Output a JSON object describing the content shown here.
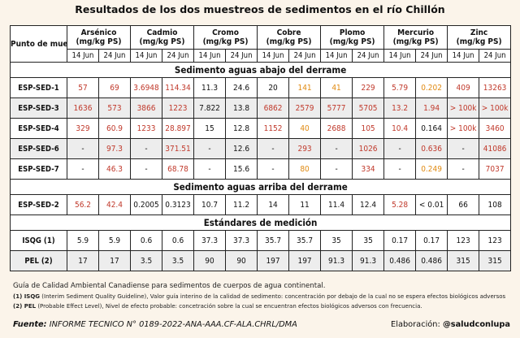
{
  "title": "Resultados de los dos muestreos de sedimentos en el río Chillón",
  "header": {
    "site_label": "Punto de muestreo",
    "metals": [
      {
        "name": "Arsénico",
        "unit": "(mg/kg PS)"
      },
      {
        "name": "Cadmio",
        "unit": "(mg/kg PS)"
      },
      {
        "name": "Cromo",
        "unit": "(mg/kg PS)"
      },
      {
        "name": "Cobre",
        "unit": "(mg/kg PS)"
      },
      {
        "name": "Plomo",
        "unit": "(mg/kg PS)"
      },
      {
        "name": "Mercurio",
        "unit": "(mg/kg PS)"
      },
      {
        "name": "Zinc",
        "unit": "(mg/kg PS)"
      }
    ],
    "dates": [
      "14 Jun",
      "24 Jun"
    ]
  },
  "sections": [
    {
      "title": "Sedimento aguas abajo del derrame",
      "rows": [
        {
          "site": "ESP-SED-1",
          "values": [
            "57",
            "69",
            "3.6948",
            "114.34",
            "11.3",
            "24.6",
            "20",
            "141",
            "41",
            "229",
            "5.79",
            "0.202",
            "409",
            "13263"
          ],
          "colors": [
            "red",
            "red",
            "red",
            "red",
            "blk",
            "blk",
            "blk",
            "org",
            "org",
            "red",
            "red",
            "org",
            "red",
            "red"
          ]
        },
        {
          "site": "ESP-SED-3",
          "values": [
            "1636",
            "573",
            "3866",
            "1223",
            "7.822",
            "13.8",
            "6862",
            "2579",
            "5777",
            "5705",
            "13.2",
            "1.94",
            "> 100k",
            "> 100k"
          ],
          "colors": [
            "red",
            "red",
            "red",
            "red",
            "blk",
            "blk",
            "red",
            "red",
            "red",
            "red",
            "red",
            "red",
            "red",
            "red"
          ]
        },
        {
          "site": "ESP-SED-4",
          "values": [
            "329",
            "60.9",
            "1233",
            "28.897",
            "15",
            "12.8",
            "1152",
            "40",
            "2688",
            "105",
            "10.4",
            "0.164",
            "> 100k",
            "3460"
          ],
          "colors": [
            "red",
            "red",
            "red",
            "red",
            "blk",
            "blk",
            "red",
            "org",
            "red",
            "red",
            "red",
            "blk",
            "red",
            "red"
          ]
        },
        {
          "site": "ESP-SED-6",
          "values": [
            "-",
            "97.3",
            "-",
            "371.51",
            "-",
            "12.6",
            "-",
            "293",
            "-",
            "1026",
            "-",
            "0.636",
            "-",
            "41086"
          ],
          "colors": [
            "blk",
            "red",
            "blk",
            "red",
            "blk",
            "blk",
            "blk",
            "red",
            "blk",
            "red",
            "blk",
            "red",
            "blk",
            "red"
          ]
        },
        {
          "site": "ESP-SED-7",
          "values": [
            "-",
            "46.3",
            "-",
            "68.78",
            "-",
            "15.6",
            "-",
            "80",
            "-",
            "334",
            "-",
            "0.249",
            "-",
            "7037"
          ],
          "colors": [
            "blk",
            "red",
            "blk",
            "red",
            "blk",
            "blk",
            "blk",
            "org",
            "blk",
            "red",
            "blk",
            "org",
            "blk",
            "red"
          ]
        }
      ]
    },
    {
      "title": "Sedimento aguas arriba del derrame",
      "rows": [
        {
          "site": "ESP-SED-2",
          "values": [
            "56.2",
            "42.4",
            "0.2005",
            "0.3123",
            "10.7",
            "11.2",
            "14",
            "11",
            "11.4",
            "12.4",
            "5.28",
            "< 0.01",
            "66",
            "108"
          ],
          "colors": [
            "red",
            "red",
            "blk",
            "blk",
            "blk",
            "blk",
            "blk",
            "blk",
            "blk",
            "blk",
            "red",
            "blk",
            "blk",
            "blk"
          ]
        }
      ]
    },
    {
      "title": "Estándares de medición",
      "rows": [
        {
          "site": "ISQG (1)",
          "values": [
            "5.9",
            "5.9",
            "0.6",
            "0.6",
            "37.3",
            "37.3",
            "35.7",
            "35.7",
            "35",
            "35",
            "0.17",
            "0.17",
            "123",
            "123"
          ],
          "colors": [
            "blk",
            "blk",
            "blk",
            "blk",
            "blk",
            "blk",
            "blk",
            "blk",
            "blk",
            "blk",
            "blk",
            "blk",
            "blk",
            "blk"
          ]
        },
        {
          "site": "PEL (2)",
          "values": [
            "17",
            "17",
            "3.5",
            "3.5",
            "90",
            "90",
            "197",
            "197",
            "91.3",
            "91.3",
            "0.486",
            "0.486",
            "315",
            "315"
          ],
          "colors": [
            "blk",
            "blk",
            "blk",
            "blk",
            "blk",
            "blk",
            "blk",
            "blk",
            "blk",
            "blk",
            "blk",
            "blk",
            "blk",
            "blk"
          ]
        }
      ]
    }
  ],
  "colors": {
    "red": "#c0392b",
    "orange": "#e08a12",
    "black": "#111111",
    "alt_row": "#ededed",
    "background": "#fbf4ea"
  },
  "footnotes": {
    "guide": "Guía de Calidad Ambiental Canadiense para sedimentos de cuerpos de agua continental.",
    "isqg_label": "(1) ISQG",
    "isqg_text": "(Interim Sediment Quality Guideline), Valor guía interino de la calidad de sedimento: concentración por debajo de la cual no se espera efectos biológicos adversos",
    "pel_label": "(2) PEL",
    "pel_text": "(Probable Effect Level), Nivel de efecto probable: concetración sobre la cual se encuentran efectos biológicos adversos con frecuencia."
  },
  "footer": {
    "source_label": "Fuente:",
    "source_text": "INFORME TECNICO N° 0189-2022-ANA-AAA.CF-ALA.CHRL/DMA",
    "credit_label": "Elaboración:",
    "credit_handle": "@saludconlupa"
  }
}
